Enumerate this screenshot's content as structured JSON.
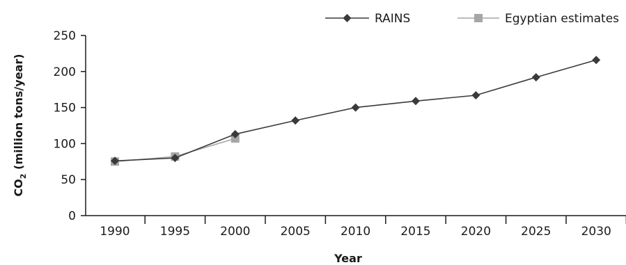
{
  "chart_data": {
    "type": "line",
    "x": [
      1990,
      1995,
      2000,
      2005,
      2010,
      2015,
      2020,
      2025,
      2030
    ],
    "categories": [
      "1990",
      "1995",
      "2000",
      "2005",
      "2010",
      "2015",
      "2020",
      "2025",
      "2030"
    ],
    "series": [
      {
        "name": "RAINS",
        "marker": "diamond",
        "color": "#3a3a3a",
        "values": [
          76,
          80,
          113,
          132,
          150,
          159,
          167,
          192,
          216
        ]
      },
      {
        "name": "Egyptian estimates",
        "marker": "square",
        "color": "#a6a6a6",
        "values": [
          75,
          82,
          107,
          null,
          null,
          null,
          null,
          null,
          null
        ]
      }
    ],
    "y_ticks": [
      "0",
      "50",
      "100",
      "150",
      "200",
      "250"
    ],
    "ylim": [
      0,
      250
    ],
    "xlabel": "Year",
    "ylabel_main": "CO",
    "ylabel_sub": "2",
    "ylabel_rest": " (million tons/year)",
    "legend_position": "top-right",
    "grid": false
  }
}
